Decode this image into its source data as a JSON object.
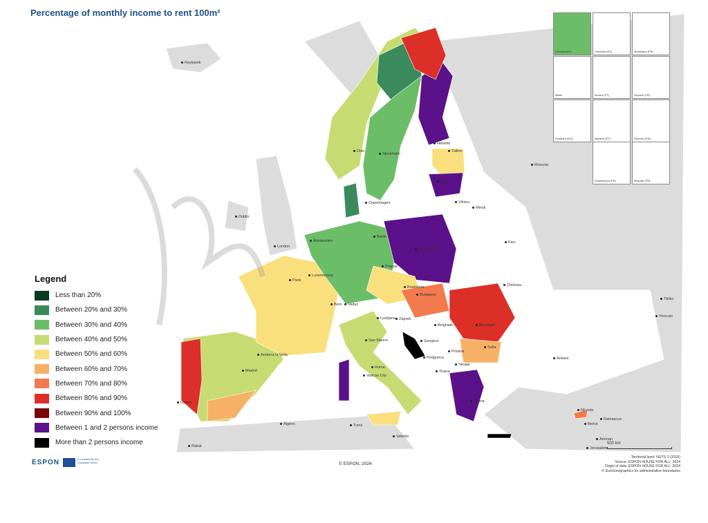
{
  "title": "Percentage of monthly income to rent 100m²",
  "legend": {
    "title": "Legend",
    "items": [
      {
        "label": "Less than 20%",
        "color": "#0b3a1e"
      },
      {
        "label": "Between 20% and 30%",
        "color": "#3b8a5c"
      },
      {
        "label": "Between 30% and 40%",
        "color": "#6cbd67"
      },
      {
        "label": "Between 40% and 50%",
        "color": "#c6dc72"
      },
      {
        "label": "Between 50% and 60%",
        "color": "#f9e07c"
      },
      {
        "label": "Between 60% and 70%",
        "color": "#f7b166"
      },
      {
        "label": "Between 70% and 80%",
        "color": "#f27a4d"
      },
      {
        "label": "Between 80% and 90%",
        "color": "#dc2f27"
      },
      {
        "label": "Between 90% and 100%",
        "color": "#780606"
      },
      {
        "label": "Between 1 and 2 persons income",
        "color": "#5a1189"
      },
      {
        "label": "More than 2 persons income",
        "color": "#000000"
      }
    ]
  },
  "insets": [
    "Liechtenstein",
    "Canarias (ES)",
    "Martinique (FR)",
    "Malta",
    "Acores (PT)",
    "Guyane (FR)",
    "Svalbard (NO)",
    "Madeira (PT)",
    "Reunion (FR)",
    "Guadeloupe (FR)",
    "Mayotte (FR)"
  ],
  "cities": [
    "Reykjavik",
    "Oslo",
    "Stockholm",
    "Helsinki",
    "Tallinn",
    "Riga",
    "Vilnius",
    "Minsk",
    "Moscow",
    "Copenhagen",
    "Dublin",
    "London",
    "Amsterdam",
    "Berlin",
    "Luxembourg",
    "Paris",
    "Prague",
    "Warszawa",
    "Bratislava",
    "Budapest",
    "Kiev",
    "Chisinau",
    "Bern",
    "Vaduz",
    "Ljubljana",
    "Zagreb",
    "Belgrade",
    "Bucuresti",
    "Sarajevo",
    "San Marino",
    "Andorra la Vella",
    "Madrid",
    "Lisboa",
    "Roma",
    "Vatican City",
    "Podgorica",
    "Pristina",
    "Tirana",
    "Skopje",
    "Sofia",
    "Athina",
    "Ankara",
    "Tbilisi",
    "Yerevan",
    "Nicosia",
    "Beirut",
    "Damascus",
    "Amman",
    "Jerusalem",
    "Algiers",
    "Tunis",
    "Valletta",
    "Rabat"
  ],
  "scale": "500 km",
  "footer": {
    "logo": "ESPON",
    "eu": "Co-funded by the European Union",
    "copyright": "© ESPON, 2024",
    "credits": [
      "Territorial level: NUTS 3 (2016)",
      "Source: ESPON HOUSE FOR ALL, 2024",
      "Origin of data: ESPON HOUSE FOR ALL, 2024",
      "© EuroGeographics for administrative boundaries"
    ]
  },
  "colors": {
    "title": "#1f4e8c",
    "land": "#dcdcdc",
    "sea": "#ffffff"
  }
}
